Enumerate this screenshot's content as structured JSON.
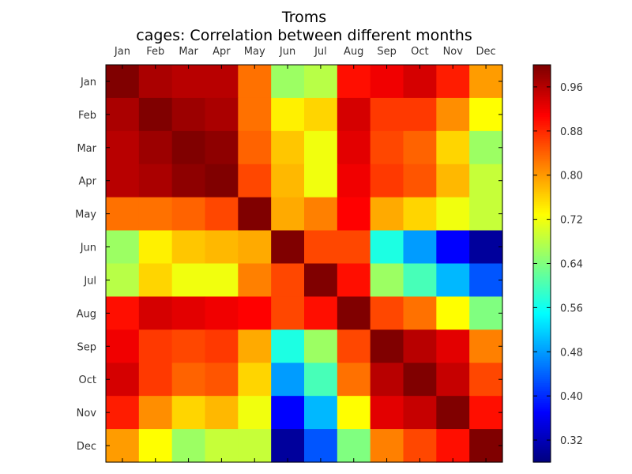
{
  "chart_data": {
    "type": "heatmap",
    "title": "Troms",
    "subtitle": "cages: Correlation between different months",
    "x_categories": [
      "Jan",
      "Feb",
      "Mar",
      "Apr",
      "May",
      "Jun",
      "Jul",
      "Aug",
      "Sep",
      "Oct",
      "Nov",
      "Dec"
    ],
    "y_categories": [
      "Jan",
      "Feb",
      "Mar",
      "Apr",
      "May",
      "Jun",
      "Jul",
      "Aug",
      "Sep",
      "Oct",
      "Nov",
      "Dec"
    ],
    "values": [
      [
        1.0,
        0.97,
        0.96,
        0.96,
        0.83,
        0.66,
        0.68,
        0.9,
        0.92,
        0.94,
        0.89,
        0.8
      ],
      [
        0.97,
        1.0,
        0.98,
        0.97,
        0.83,
        0.74,
        0.76,
        0.94,
        0.87,
        0.87,
        0.81,
        0.73
      ],
      [
        0.96,
        0.98,
        1.0,
        0.99,
        0.84,
        0.77,
        0.72,
        0.93,
        0.86,
        0.84,
        0.76,
        0.66
      ],
      [
        0.96,
        0.97,
        0.99,
        1.0,
        0.86,
        0.78,
        0.72,
        0.92,
        0.87,
        0.85,
        0.78,
        0.69
      ],
      [
        0.83,
        0.83,
        0.84,
        0.86,
        1.0,
        0.79,
        0.82,
        0.91,
        0.79,
        0.76,
        0.72,
        0.69
      ],
      [
        0.66,
        0.74,
        0.77,
        0.78,
        0.79,
        1.0,
        0.86,
        0.86,
        0.57,
        0.48,
        0.37,
        0.3
      ],
      [
        0.68,
        0.76,
        0.72,
        0.72,
        0.82,
        0.86,
        1.0,
        0.9,
        0.66,
        0.6,
        0.5,
        0.43
      ],
      [
        0.9,
        0.94,
        0.93,
        0.92,
        0.91,
        0.86,
        0.9,
        1.0,
        0.86,
        0.83,
        0.73,
        0.64
      ],
      [
        0.92,
        0.87,
        0.86,
        0.87,
        0.79,
        0.57,
        0.66,
        0.86,
        1.0,
        0.96,
        0.93,
        0.82
      ],
      [
        0.94,
        0.87,
        0.84,
        0.85,
        0.76,
        0.48,
        0.6,
        0.83,
        0.96,
        1.0,
        0.95,
        0.86
      ],
      [
        0.89,
        0.81,
        0.76,
        0.78,
        0.72,
        0.37,
        0.5,
        0.73,
        0.93,
        0.95,
        1.0,
        0.9
      ],
      [
        0.8,
        0.73,
        0.66,
        0.69,
        0.69,
        0.3,
        0.43,
        0.64,
        0.82,
        0.86,
        0.9,
        1.0
      ]
    ],
    "colormap": "jet",
    "vmin": 0.28,
    "vmax": 1.0,
    "colorbar_ticks": [
      "0.32",
      "0.40",
      "0.48",
      "0.56",
      "0.64",
      "0.72",
      "0.80",
      "0.88",
      "0.96"
    ],
    "grid": false
  }
}
